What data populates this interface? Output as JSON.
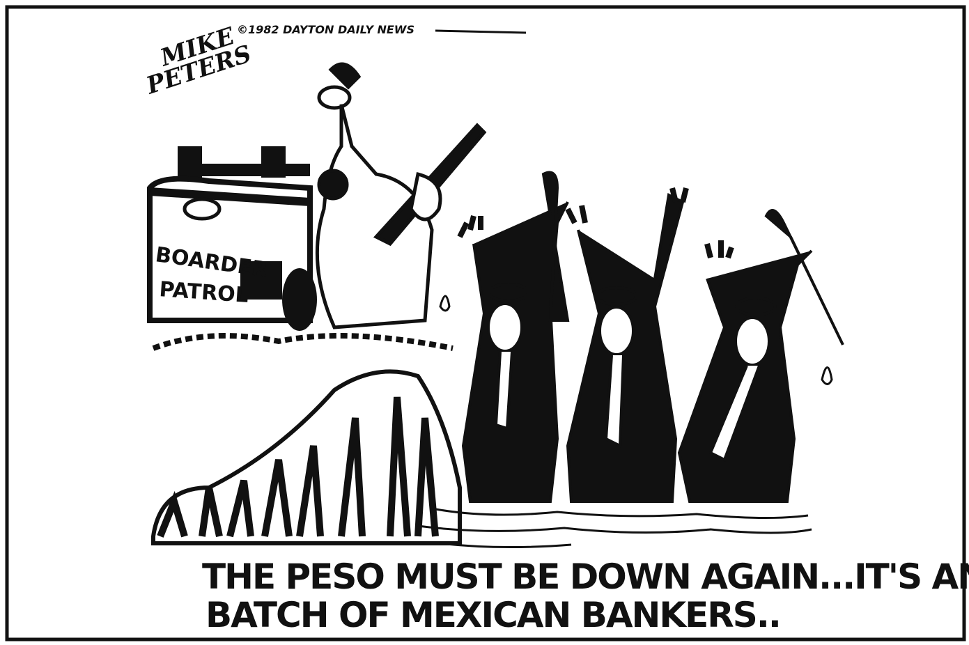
{
  "cartoon": {
    "copyright": "©1982 DAYTON DAILY NEWS",
    "signature": [
      "MIKE",
      "PETERS"
    ],
    "vehicle_label": [
      "BOARDER",
      "PATROL"
    ],
    "caption": [
      "THE PESO MUST BE DOWN AGAIN...IT'S ANOTHER",
      "BATCH OF MEXICAN BANKERS.."
    ]
  }
}
